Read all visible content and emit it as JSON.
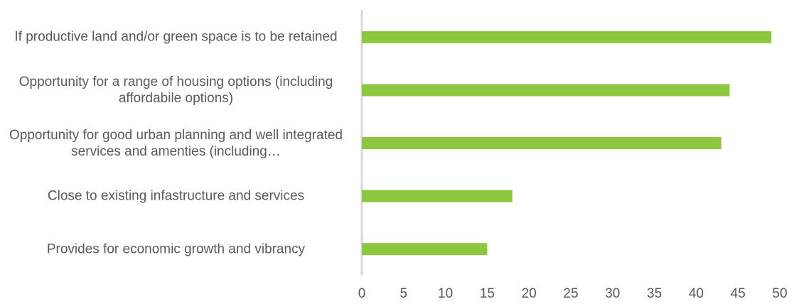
{
  "chart_data": {
    "type": "bar",
    "orientation": "horizontal",
    "categories": [
      "If productive land and/or green space is to be retained",
      "Opportunity for a range of housing options (including affordabile options)",
      "Opportunity for good urban planning and well integrated services and amenties (including…",
      "Close to existing infastructure and services",
      "Provides for economic growth and vibrancy"
    ],
    "values": [
      49,
      44,
      43,
      18,
      15
    ],
    "color": "#8dc63f",
    "xlim": [
      0,
      50
    ],
    "xticks": [
      0,
      5,
      10,
      15,
      20,
      25,
      30,
      35,
      40,
      45,
      50
    ],
    "grid": false
  }
}
